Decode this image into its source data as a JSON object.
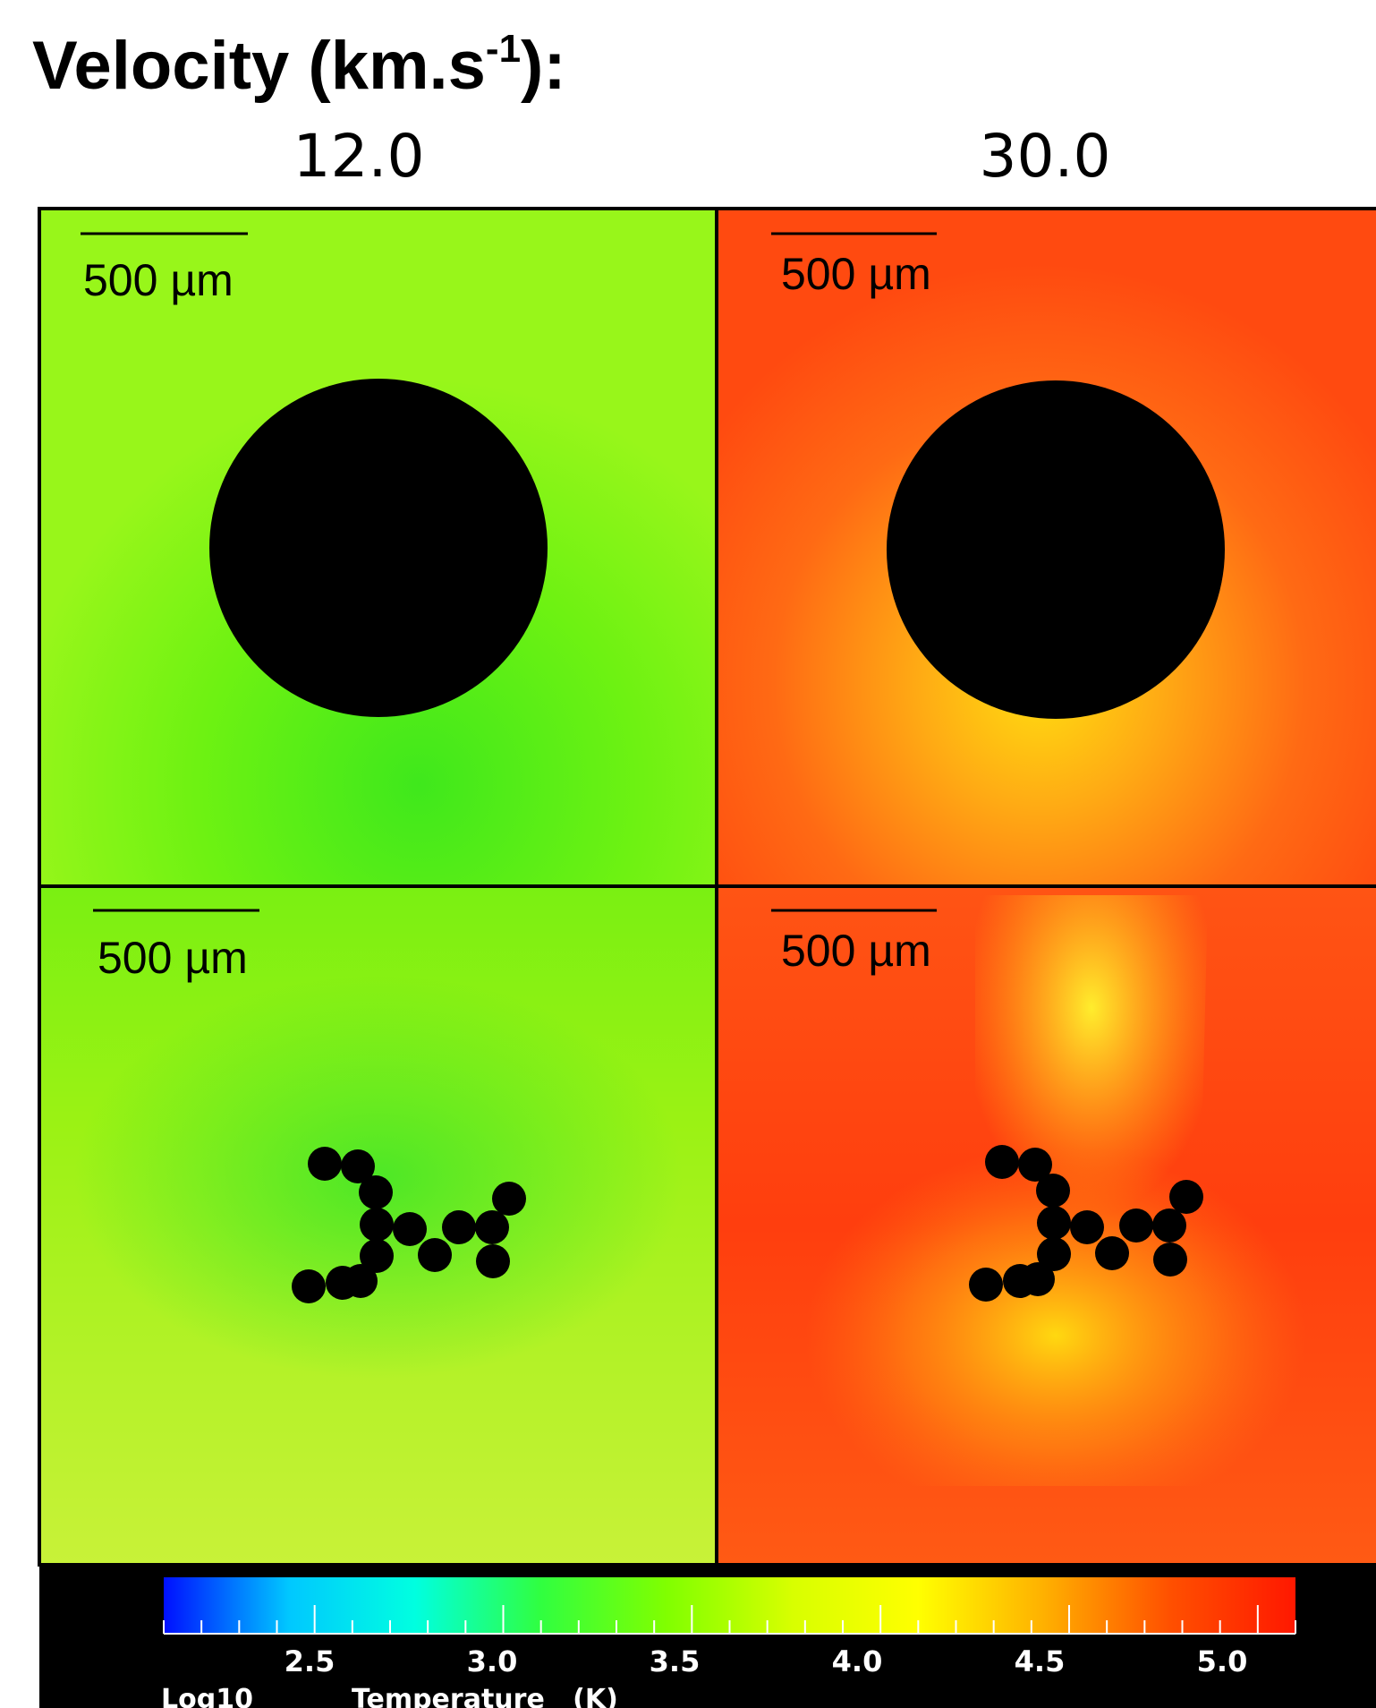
{
  "heading": {
    "text": "Velocity (km.s",
    "sup": "-1",
    "tail": "):"
  },
  "columns": [
    "12.0",
    "30.0"
  ],
  "panels": [
    {
      "scale_label": "500 µm",
      "velocity": "12.0",
      "target": "sphere",
      "palette": "green"
    },
    {
      "scale_label": "500 µm",
      "velocity": "30.0",
      "target": "sphere",
      "palette": "red"
    },
    {
      "scale_label": "500 µm",
      "velocity": "12.0",
      "target": "aggregate",
      "palette": "green"
    },
    {
      "scale_label": "500 µm",
      "velocity": "30.0",
      "target": "aggregate",
      "palette": "red"
    }
  ],
  "colorbar": {
    "ticks": [
      "2.5",
      "3.0",
      "3.5",
      "4.0",
      "4.5",
      "5.0"
    ],
    "label_left": "Log10",
    "label_right": "Temperature   (K)",
    "colors": [
      "#0010ff",
      "#00c8ff",
      "#00ffe0",
      "#30ff40",
      "#80ff00",
      "#d8ff00",
      "#ffff00",
      "#ffb000",
      "#ff5000",
      "#ff1800"
    ]
  }
}
